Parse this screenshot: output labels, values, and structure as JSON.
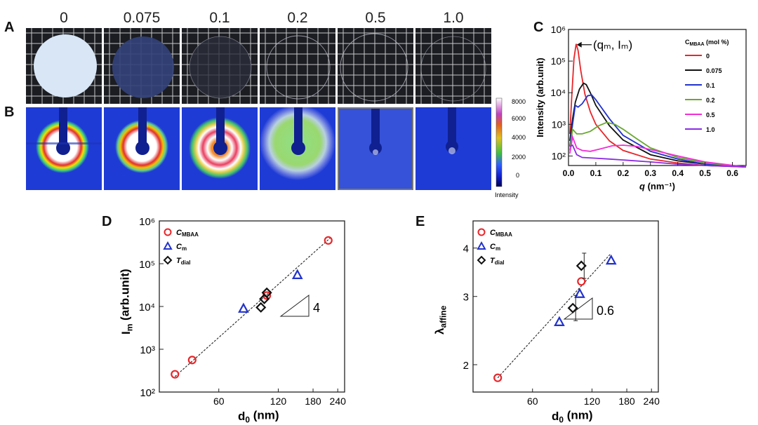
{
  "panels": {
    "A": "A",
    "B": "B",
    "C": "C",
    "D": "D",
    "E": "E"
  },
  "top_labels": [
    "0",
    "0.075",
    "0.1",
    "0.2",
    "0.5",
    "1.0"
  ],
  "colorbar": {
    "ticks": [
      "8000",
      "6000",
      "4000",
      "2000",
      "0"
    ],
    "label": "Intensity"
  },
  "colors": {
    "saxs_bg": "#1f3bd6",
    "red": "#e8262a",
    "black": "#111111",
    "blue": "#2233cc",
    "green": "#6aa832",
    "magenta": "#f22ed6",
    "purple": "#8b2be2"
  },
  "chart_data": [
    {
      "type": "line",
      "panel": "C",
      "xlabel": "q (nm⁻¹)",
      "x_prefix": "q",
      "x_unit": "(nm⁻¹)",
      "ylabel": "Intensity (arb.unit)",
      "xlim": [
        0,
        0.65
      ],
      "ylim": [
        50,
        1000000
      ],
      "yscale": "log",
      "xticks": [
        "0.0",
        "0.1",
        "0.2",
        "0.3",
        "0.4",
        "0.5",
        "0.6"
      ],
      "yticks": [
        "10²",
        "10³",
        "10⁴",
        "10⁵",
        "10⁶"
      ],
      "annotation": "(qₘ, Iₘ)",
      "legend_title": "Cₘʙᴀᴀ (mol %)",
      "legend_title_main": "C",
      "legend_title_sub": "MBAA",
      "legend_title_unit": "(mol %)",
      "series": [
        {
          "name": "0",
          "x": [
            0.005,
            0.012,
            0.02,
            0.028,
            0.035,
            0.045,
            0.06,
            0.08,
            0.1,
            0.15,
            0.2,
            0.3,
            0.4,
            0.5,
            0.65
          ],
          "y": [
            500,
            8000,
            120000,
            350000,
            220000,
            50000,
            9000,
            2500,
            1000,
            300,
            150,
            80,
            60,
            50,
            45
          ]
        },
        {
          "name": "0.075",
          "x": [
            0.005,
            0.015,
            0.025,
            0.04,
            0.055,
            0.065,
            0.08,
            0.1,
            0.15,
            0.2,
            0.3,
            0.4,
            0.5,
            0.65
          ],
          "y": [
            300,
            1500,
            5000,
            13000,
            20000,
            18000,
            10000,
            4000,
            900,
            320,
            110,
            70,
            55,
            45
          ]
        },
        {
          "name": "0.1",
          "x": [
            0.005,
            0.015,
            0.025,
            0.035,
            0.05,
            0.07,
            0.085,
            0.1,
            0.15,
            0.2,
            0.3,
            0.4,
            0.5,
            0.65
          ],
          "y": [
            200,
            1000,
            4000,
            3500,
            4500,
            8000,
            8500,
            6000,
            1500,
            450,
            140,
            80,
            55,
            45
          ]
        },
        {
          "name": "0.2",
          "x": [
            0.005,
            0.015,
            0.03,
            0.05,
            0.08,
            0.11,
            0.14,
            0.17,
            0.2,
            0.25,
            0.3,
            0.4,
            0.5,
            0.65
          ],
          "y": [
            150,
            700,
            500,
            500,
            600,
            900,
            1150,
            1000,
            700,
            350,
            180,
            90,
            60,
            45
          ]
        },
        {
          "name": "0.5",
          "x": [
            0.005,
            0.015,
            0.03,
            0.05,
            0.08,
            0.12,
            0.16,
            0.2,
            0.25,
            0.3,
            0.4,
            0.5,
            0.65
          ],
          "y": [
            120,
            400,
            180,
            150,
            140,
            170,
            210,
            220,
            200,
            160,
            100,
            65,
            45
          ]
        },
        {
          "name": "1.0",
          "x": [
            0.005,
            0.015,
            0.03,
            0.05,
            0.1,
            0.15,
            0.2,
            0.3,
            0.4,
            0.5,
            0.65
          ],
          "y": [
            200,
            220,
            110,
            90,
            85,
            80,
            75,
            65,
            55,
            50,
            45
          ]
        }
      ]
    },
    {
      "type": "scatter",
      "panel": "D",
      "xlabel": "d₀ (nm)",
      "x_main": "d",
      "x_sub": "0",
      "x_unit": "(nm)",
      "ylabel": "Iₘ (arb.unit)",
      "y_main": "I",
      "y_sub": "m",
      "y_unit": "(arb.unit)",
      "xscale": "log",
      "yscale": "log",
      "xlim": [
        30,
        260
      ],
      "ylim": [
        100,
        1000000
      ],
      "xticks": [
        "60",
        "120",
        "180",
        "240"
      ],
      "yticks": [
        "10²",
        "10³",
        "10⁴",
        "10⁵",
        "10⁶"
      ],
      "slope_label": "4",
      "series": [
        {
          "name": "C_MBAA",
          "main": "C",
          "sub": "MBAA",
          "marker": "circle",
          "x": [
            36,
            44,
            105,
            215
          ],
          "y": [
            260,
            560,
            18000,
            350000
          ]
        },
        {
          "name": "C_m",
          "main": "C",
          "sub": "m",
          "marker": "triangle",
          "x": [
            80,
            150
          ],
          "y": [
            9000,
            55000
          ]
        },
        {
          "name": "T_dial",
          "main": "T",
          "sub": "dial",
          "marker": "diamond",
          "x": [
            98,
            102,
            105
          ],
          "y": [
            9500,
            15000,
            21000
          ]
        }
      ],
      "fit": {
        "x": [
          36,
          220
        ],
        "y": [
          230,
          400000
        ]
      }
    },
    {
      "type": "scatter",
      "panel": "E",
      "xlabel": "d₀ (nm)",
      "x_main": "d",
      "x_sub": "0",
      "x_unit": "(nm)",
      "ylabel": "λ_affine",
      "y_main": "λ",
      "y_sub": "affine",
      "xscale": "log",
      "yscale": "log",
      "xlim": [
        30,
        260
      ],
      "ylim": [
        1.7,
        4.7
      ],
      "xticks": [
        "60",
        "120",
        "180",
        "240"
      ],
      "yticks": [
        "2",
        "3",
        "4"
      ],
      "slope_label": "0.6",
      "series": [
        {
          "name": "C_MBAA",
          "main": "C",
          "sub": "MBAA",
          "marker": "circle",
          "x": [
            40,
            106
          ],
          "y": [
            1.85,
            3.28
          ]
        },
        {
          "name": "C_m",
          "main": "C",
          "sub": "m",
          "marker": "triangle",
          "x": [
            82,
            104,
            150
          ],
          "y": [
            2.58,
            3.05,
            3.72
          ]
        },
        {
          "name": "T_dial",
          "main": "T",
          "sub": "dial",
          "marker": "diamond",
          "x": [
            96,
            106
          ],
          "y": [
            2.8,
            3.6
          ]
        }
      ],
      "fit": {
        "x": [
          40,
          148
        ],
        "y": [
          1.85,
          3.85
        ]
      }
    }
  ]
}
